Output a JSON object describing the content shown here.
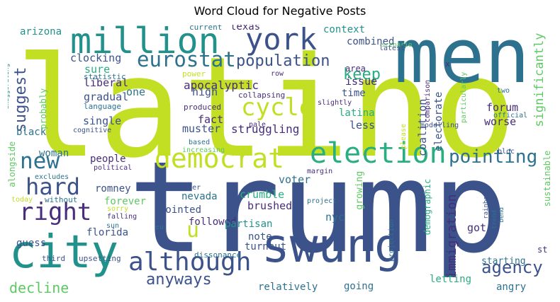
{
  "chart_data": {
    "type": "wordcloud",
    "title": "Word Cloud for Negative Posts",
    "words": [
      {
        "text": "latino",
        "weight": 100,
        "color": "#c2df23"
      },
      {
        "text": "trump",
        "weight": 95,
        "color": "#3b528b"
      },
      {
        "text": "men",
        "weight": 60,
        "color": "#2c728e"
      },
      {
        "text": "swung",
        "weight": 38,
        "color": "#3b528b"
      },
      {
        "text": "city",
        "weight": 36,
        "color": "#21918c"
      },
      {
        "text": "million",
        "weight": 28,
        "color": "#21918c"
      },
      {
        "text": "york",
        "weight": 24,
        "color": "#3b528b"
      },
      {
        "text": "election",
        "weight": 24,
        "color": "#28ae80"
      },
      {
        "text": "democrat",
        "weight": 22,
        "color": "#c2df23"
      },
      {
        "text": "although",
        "weight": 21,
        "color": "#3b528b"
      },
      {
        "text": "right",
        "weight": 20,
        "color": "#472d7b"
      },
      {
        "text": "cycle",
        "weight": 20,
        "color": "#c2df23"
      },
      {
        "text": "hard",
        "weight": 19,
        "color": "#3b528b"
      },
      {
        "text": "new",
        "weight": 18,
        "color": "#2c728e"
      },
      {
        "text": "eurostat",
        "weight": 17,
        "color": "#2c728e"
      },
      {
        "text": "u",
        "weight": 17,
        "color": "#c2df23"
      },
      {
        "text": "pointing",
        "weight": 16,
        "color": "#2c728e"
      },
      {
        "text": "agency",
        "weight": 15,
        "color": "#3b528b"
      },
      {
        "text": "anyways",
        "weight": 14,
        "color": "#3b528b"
      },
      {
        "text": "suggest",
        "weight": 14,
        "color": "#3b528b"
      },
      {
        "text": "population",
        "weight": 13,
        "color": "#3b528b"
      },
      {
        "text": "keep",
        "weight": 13,
        "color": "#28ae80"
      },
      {
        "text": "decline",
        "weight": 12,
        "color": "#5ec962"
      },
      {
        "text": "immigration",
        "weight": 12,
        "color": "#472d7b"
      },
      {
        "text": "significantly",
        "weight": 11,
        "color": "#5ec962"
      },
      {
        "text": "apocalyptic",
        "weight": 10,
        "color": "#472d7b"
      },
      {
        "text": "struggling",
        "weight": 10,
        "color": "#472d7b"
      },
      {
        "text": "muster",
        "weight": 10,
        "color": "#3b528b"
      },
      {
        "text": "gradual",
        "weight": 10,
        "color": "#3b528b"
      },
      {
        "text": "liberal",
        "weight": 10,
        "color": "#472d7b"
      },
      {
        "text": "sure",
        "weight": 10,
        "color": "#28ae80"
      },
      {
        "text": "clocking",
        "weight": 10,
        "color": "#3b528b"
      },
      {
        "text": "arizona",
        "weight": 9,
        "color": "#21918c"
      },
      {
        "text": "context",
        "weight": 9,
        "color": "#21918c"
      },
      {
        "text": "texas",
        "weight": 9,
        "color": "#472d7b"
      },
      {
        "text": "combined",
        "weight": 9,
        "color": "#3b528b"
      },
      {
        "text": "issue",
        "weight": 9,
        "color": "#472d7b"
      },
      {
        "text": "time",
        "weight": 9,
        "color": "#3b528b"
      },
      {
        "text": "latina",
        "weight": 9,
        "color": "#28ae80"
      },
      {
        "text": "less",
        "weight": 9,
        "color": "#3b528b"
      },
      {
        "text": "forum",
        "weight": 10,
        "color": "#472d7b"
      },
      {
        "text": "worse",
        "weight": 10,
        "color": "#472d7b"
      },
      {
        "text": "coalition",
        "weight": 9,
        "color": "#3b528b"
      },
      {
        "text": "electorate",
        "weight": 9,
        "color": "#3b528b"
      },
      {
        "text": "high",
        "weight": 10,
        "color": "#3b528b"
      },
      {
        "text": "fact",
        "weight": 10,
        "color": "#472d7b"
      },
      {
        "text": "one",
        "weight": 10,
        "color": "#2c728e"
      },
      {
        "text": "single",
        "weight": 10,
        "color": "#3b528b"
      },
      {
        "text": "black",
        "weight": 10,
        "color": "#2c728e"
      },
      {
        "text": "woman",
        "weight": 9,
        "color": "#2c728e"
      },
      {
        "text": "people",
        "weight": 10,
        "color": "#472d7b"
      },
      {
        "text": "romney",
        "weight": 10,
        "color": "#3b528b"
      },
      {
        "text": "forever",
        "weight": 10,
        "color": "#5ec962"
      },
      {
        "text": "pointed",
        "weight": 10,
        "color": "#3b528b"
      },
      {
        "text": "followed",
        "weight": 10,
        "color": "#472d7b"
      },
      {
        "text": "nevada",
        "weight": 9,
        "color": "#2c728e"
      },
      {
        "text": "crumble",
        "weight": 10,
        "color": "#28ae80"
      },
      {
        "text": "voter",
        "weight": 10,
        "color": "#2c728e"
      },
      {
        "text": "brushed",
        "weight": 10,
        "color": "#472d7b"
      },
      {
        "text": "partisan",
        "weight": 10,
        "color": "#21918c"
      },
      {
        "text": "note",
        "weight": 10,
        "color": "#3b528b"
      },
      {
        "text": "turnout",
        "weight": 10,
        "color": "#3b528b"
      },
      {
        "text": "nyc",
        "weight": 10,
        "color": "#2c728e"
      },
      {
        "text": "florida",
        "weight": 10,
        "color": "#3b528b"
      },
      {
        "text": "guess",
        "weight": 10,
        "color": "#3b528b"
      },
      {
        "text": "relatively",
        "weight": 9,
        "color": "#2c728e"
      },
      {
        "text": "going",
        "weight": 9,
        "color": "#2c728e"
      },
      {
        "text": "letting",
        "weight": 9,
        "color": "#28ae80"
      },
      {
        "text": "angry",
        "weight": 9,
        "color": "#2c728e"
      },
      {
        "text": "starting",
        "weight": 9,
        "color": "#2c728e"
      },
      {
        "text": "got",
        "weight": 10,
        "color": "#472d7b"
      },
      {
        "text": "demographic",
        "weight": 9,
        "color": "#28ae80"
      },
      {
        "text": "growing",
        "weight": 8,
        "color": "#5ec962"
      },
      {
        "text": "sustainable",
        "weight": 8,
        "color": "#5ec962"
      },
      {
        "text": "st",
        "weight": 9,
        "color": "#472d7b"
      },
      {
        "text": "area",
        "weight": 9,
        "color": "#472d7b"
      },
      {
        "text": "probably",
        "weight": 8,
        "color": "#5ec962"
      },
      {
        "text": "alongside",
        "weight": 8,
        "color": "#5ec962"
      },
      {
        "text": "third",
        "weight": 7,
        "color": "#3b528b"
      },
      {
        "text": "upsetting",
        "weight": 7,
        "color": "#3b528b"
      },
      {
        "text": "dissonance",
        "weight": 7,
        "color": "#2c728e"
      },
      {
        "text": "current",
        "weight": 7,
        "color": "#2c728e"
      },
      {
        "text": "scenario",
        "weight": 6,
        "color": "#5ec962"
      },
      {
        "text": "latest",
        "weight": 6,
        "color": "#3b528b"
      },
      {
        "text": "x",
        "weight": 7,
        "color": "#472d7b"
      },
      {
        "text": "statistic",
        "weight": 7,
        "color": "#2c728e"
      },
      {
        "text": "power",
        "weight": 6,
        "color": "#c2df23"
      },
      {
        "text": "row",
        "weight": 6,
        "color": "#472d7b"
      },
      {
        "text": "collapsing",
        "weight": 7,
        "color": "#472d7b"
      },
      {
        "text": "slightly",
        "weight": 7,
        "color": "#472d7b"
      },
      {
        "text": "language",
        "weight": 6,
        "color": "#2c728e"
      },
      {
        "text": "produced",
        "weight": 7,
        "color": "#472d7b"
      },
      {
        "text": "pale",
        "weight": 6,
        "color": "#472d7b"
      },
      {
        "text": "please",
        "weight": 6,
        "color": "#c2df23"
      },
      {
        "text": "cognitive",
        "weight": 6,
        "color": "#3b528b"
      },
      {
        "text": "based",
        "weight": 6,
        "color": "#2c728e"
      },
      {
        "text": "increasing",
        "weight": 6,
        "color": "#5ec962"
      },
      {
        "text": "comparison",
        "weight": 6,
        "color": "#472d7b"
      },
      {
        "text": "modelling",
        "weight": 6,
        "color": "#3b528b"
      },
      {
        "text": "official",
        "weight": 6,
        "color": "#2c728e"
      },
      {
        "text": "particularly",
        "weight": 6,
        "color": "#5ec962"
      },
      {
        "text": "two",
        "weight": 6,
        "color": "#2c728e"
      },
      {
        "text": "bloc",
        "weight": 6,
        "color": "#3b528b"
      },
      {
        "text": "exaggerating",
        "weight": 6,
        "color": "#21918c"
      },
      {
        "text": "excludes",
        "weight": 6,
        "color": "#2c728e"
      },
      {
        "text": "political",
        "weight": 6,
        "color": "#472d7b"
      },
      {
        "text": "today",
        "weight": 6,
        "color": "#c2df23"
      },
      {
        "text": "without",
        "weight": 6,
        "color": "#2c728e"
      },
      {
        "text": "falling",
        "weight": 6,
        "color": "#472d7b"
      },
      {
        "text": "sorry",
        "weight": 6,
        "color": "#c2df23"
      },
      {
        "text": "sun",
        "weight": 6,
        "color": "#2c728e"
      },
      {
        "text": "eu",
        "weight": 6,
        "color": "#2c728e"
      },
      {
        "text": "smaller",
        "weight": 6,
        "color": "#3b528b"
      },
      {
        "text": "margin",
        "weight": 6,
        "color": "#472d7b"
      },
      {
        "text": "project",
        "weight": 6,
        "color": "#2c728e"
      },
      {
        "text": "projection",
        "weight": 6,
        "color": "#2c728e"
      },
      {
        "text": "rainbow",
        "weight": 6,
        "color": "#3b528b"
      },
      {
        "text": "trend",
        "weight": 6,
        "color": "#2c728e"
      },
      {
        "text": "bend",
        "weight": 6,
        "color": "#2c728e"
      }
    ]
  }
}
